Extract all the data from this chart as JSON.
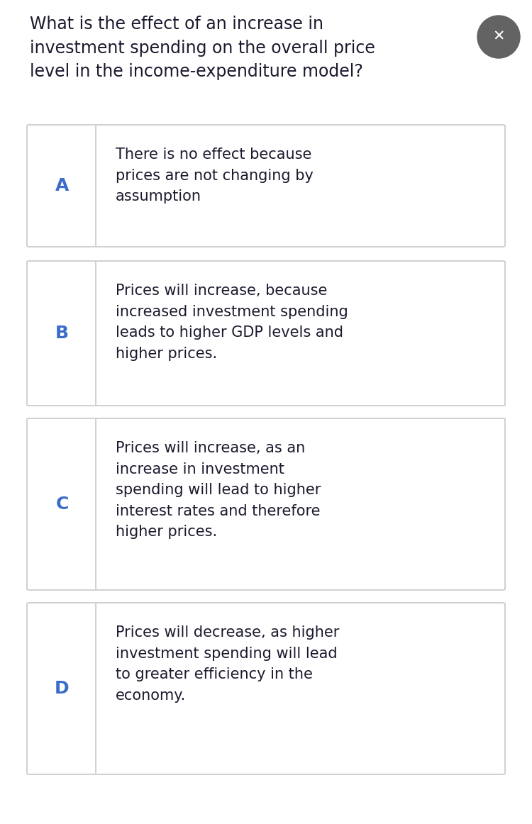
{
  "question": "What is the effect of an increase in\ninvestment spending on the overall price\nlevel in the income-expenditure model?",
  "bg_color": "#ffffff",
  "card_bg": "#ffffff",
  "card_border": "#c8c8c8",
  "label_color": "#3a6cc9",
  "text_color": "#1a1a2e",
  "close_btn_color": "#636363",
  "fig_width": 7.5,
  "fig_height": 11.62,
  "dpi": 100,
  "question_fontsize": 17,
  "label_fontsize": 18,
  "option_fontsize": 15,
  "options": [
    {
      "label": "A",
      "text": "There is no effect because\nprices are not changing by\nassumption"
    },
    {
      "label": "B",
      "text": "Prices will increase, because\nincreased investment spending\nleads to higher GDP levels and\nhigher prices."
    },
    {
      "label": "C",
      "text": "Prices will increase, as an\nincrease in investment\nspending will lead to higher\ninterest rates and therefore\nhigher prices."
    },
    {
      "label": "D",
      "text": "Prices will decrease, as higher\ninvestment spending will lead\nto greater efficiency in the\neconomy."
    }
  ]
}
